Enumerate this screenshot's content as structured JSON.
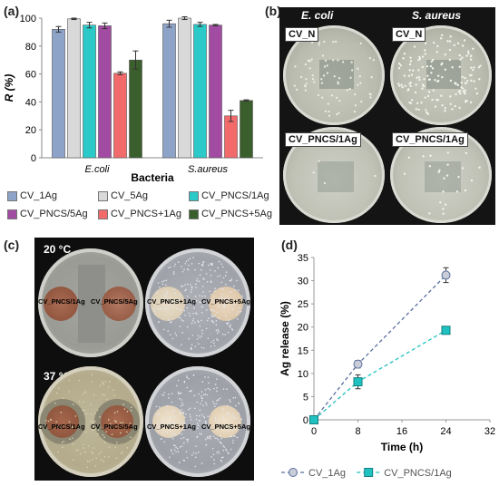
{
  "panels": {
    "a": "(a)",
    "b": "(b)",
    "c": "(c)",
    "d": "(d)"
  },
  "chart_data": [
    {
      "type": "bar",
      "ylabel": "R (%)",
      "xlabel": "Bacteria",
      "categories": [
        "E.coli",
        "S.aureus"
      ],
      "ylim": [
        0,
        100
      ],
      "yticks": [
        0,
        20,
        40,
        60,
        80,
        100
      ],
      "legend_position": "bottom",
      "grid": false,
      "series": [
        {
          "name": "CV_1Ag",
          "values": [
            92,
            96
          ],
          "errors": [
            2,
            2.5
          ],
          "color": "#8ea3c8"
        },
        {
          "name": "CV_5Ag",
          "values": [
            99.5,
            100
          ],
          "errors": [
            0.5,
            1
          ],
          "color": "#d9d9d9"
        },
        {
          "name": "CV_PNCS/1Ag",
          "values": [
            95,
            95.5
          ],
          "errors": [
            2,
            1.5
          ],
          "color": "#2cc9c9"
        },
        {
          "name": "CV_PNCS/5Ag",
          "values": [
            94.5,
            95
          ],
          "errors": [
            2,
            0.5
          ],
          "color": "#a24ba2"
        },
        {
          "name": "CV_PNCS+1Ag",
          "values": [
            60.5,
            30
          ],
          "errors": [
            1,
            4
          ],
          "color": "#f26a6a"
        },
        {
          "name": "CV_PNCS+5Ag",
          "values": [
            70,
            41
          ],
          "errors": [
            6.5,
            0.5
          ],
          "color": "#3a5f2c"
        }
      ]
    },
    {
      "type": "line",
      "ylabel": "Ag release (%)",
      "xlabel": "Time (h)",
      "xlim": [
        0,
        32
      ],
      "ylim": [
        0,
        35
      ],
      "xticks": [
        0,
        8,
        16,
        24,
        32
      ],
      "yticks": [
        0,
        5,
        10,
        15,
        20,
        25,
        30,
        35
      ],
      "legend_position": "bottom",
      "series": [
        {
          "name": "CV_1Ag",
          "x": [
            0,
            8,
            24
          ],
          "y": [
            0,
            12,
            31.2
          ],
          "errors": [
            0,
            0.8,
            1.6
          ],
          "color": "#5a6f9e",
          "marker": "circle"
        },
        {
          "name": "CV_PNCS/1Ag",
          "x": [
            0,
            8,
            24
          ],
          "y": [
            0,
            8.2,
            19.3
          ],
          "errors": [
            0,
            1.5,
            0.4
          ],
          "color": "#1fc1c1",
          "marker": "square"
        }
      ]
    }
  ],
  "photo_b": {
    "col_left": "E. coli",
    "col_right": "S. aureus",
    "labels": [
      "CV_N",
      "CV_N",
      "CV_PNCS/1Ag",
      "CV_PNCS/1Ag"
    ]
  },
  "photo_c": {
    "temp_top": "20 °C",
    "temp_bottom": "37 °C",
    "disks": [
      "CV_PNCS/1Ag",
      "CV_PNCS/5Ag",
      "CV_PNCS+1Ag",
      "CV_PNCS+5Ag",
      "CV_PNCS/1Ag",
      "CV_PNCS/5Ag",
      "CV_PNCS+1Ag",
      "CV_PNCS+5Ag"
    ]
  }
}
